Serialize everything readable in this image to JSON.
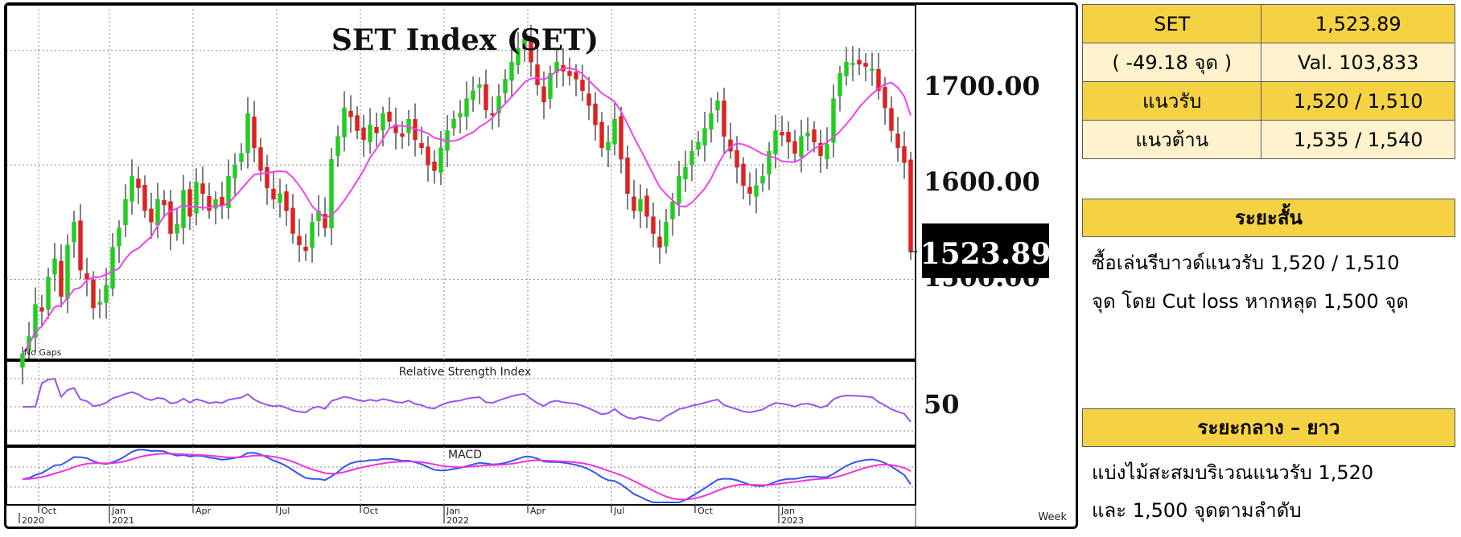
{
  "chart_data": {
    "type": "candlestick",
    "title": "SET Index (SET)",
    "period_label": "Week",
    "note": "No Gaps",
    "last_value_label": "1523.89",
    "y_ticks": [
      "1700.00",
      "1600.00",
      "1500.00"
    ],
    "ylim": [
      1430,
      1740
    ],
    "x_ticks": [
      {
        "label": "Oct",
        "index": 3
      },
      {
        "label": "Jan",
        "index": 14
      },
      {
        "label": "Apr",
        "index": 27
      },
      {
        "label": "Jul",
        "index": 40
      },
      {
        "label": "Oct",
        "index": 53
      },
      {
        "label": "Jan",
        "index": 66
      },
      {
        "label": "Apr",
        "index": 79
      },
      {
        "label": "Jul",
        "index": 92
      },
      {
        "label": "Oct",
        "index": 105
      },
      {
        "label": "Jan",
        "index": 118
      }
    ],
    "year_labels": [
      {
        "label": "2020",
        "index": 0
      },
      {
        "label": "2021",
        "index": 14
      },
      {
        "label": "2022",
        "index": 66
      },
      {
        "label": "2023",
        "index": 118
      }
    ],
    "close": [
      1435,
      1450,
      1478,
      1472,
      1502,
      1518,
      1485,
      1530,
      1550,
      1508,
      1500,
      1475,
      1480,
      1495,
      1528,
      1545,
      1570,
      1590,
      1580,
      1560,
      1550,
      1570,
      1565,
      1540,
      1548,
      1578,
      1555,
      1585,
      1575,
      1560,
      1570,
      1565,
      1590,
      1600,
      1610,
      1645,
      1615,
      1595,
      1580,
      1570,
      1575,
      1560,
      1540,
      1530,
      1525,
      1550,
      1560,
      1545,
      1605,
      1625,
      1650,
      1642,
      1630,
      1622,
      1635,
      1628,
      1645,
      1638,
      1628,
      1625,
      1640,
      1622,
      1615,
      1600,
      1595,
      1615,
      1630,
      1640,
      1645,
      1658,
      1665,
      1670,
      1648,
      1645,
      1660,
      1675,
      1690,
      1702,
      1710,
      1690,
      1670,
      1655,
      1680,
      1690,
      1682,
      1678,
      1675,
      1665,
      1652,
      1635,
      1615,
      1620,
      1640,
      1605,
      1575,
      1560,
      1570,
      1555,
      1540,
      1528,
      1550,
      1568,
      1590,
      1598,
      1612,
      1620,
      1632,
      1645,
      1656,
      1625,
      1612,
      1598,
      1582,
      1575,
      1582,
      1590,
      1612,
      1630,
      1626,
      1620,
      1610,
      1625,
      1628,
      1620,
      1608,
      1618,
      1658,
      1680,
      1690,
      1689,
      1688,
      1686,
      1684,
      1665,
      1650,
      1630,
      1615,
      1602,
      1523.89
    ],
    "rsi_label": "Relative Strength Index",
    "rsi_ticks": [
      "50"
    ],
    "macd_label": "MACD"
  },
  "colors": {
    "up": "#22cc22",
    "down": "#dd2222",
    "ma": "#ee44ee",
    "rsi": "#9955ee",
    "macd": "#3355ee",
    "signal": "#ee33dd",
    "grid": "#888888",
    "highlight": "#f5d244",
    "highlight_light": "#fff2cc"
  },
  "stats": {
    "row1_label": "SET",
    "row1_value": "1,523.89",
    "row2_label": "( -49.18 จุด )",
    "row2_value": "Val. 103,833",
    "row3_label": "แนวรับ",
    "row3_value": "1,520 / 1,510",
    "row4_label": "แนวต้าน",
    "row4_value": "1,535 / 1,540"
  },
  "short_term": {
    "heading": "ระยะสั้น",
    "line1": "ซื้อเล่นรีบาวด์แนวรับ 1,520 / 1,510",
    "line2": "จุด โดย Cut loss หากหลุด 1,500 จุด"
  },
  "long_term": {
    "heading": "ระยะกลาง – ยาว",
    "line1": "แบ่งไม้สะสมบริเวณแนวรับ 1,520",
    "line2": "และ 1,500 จุดตามลำดับ"
  }
}
